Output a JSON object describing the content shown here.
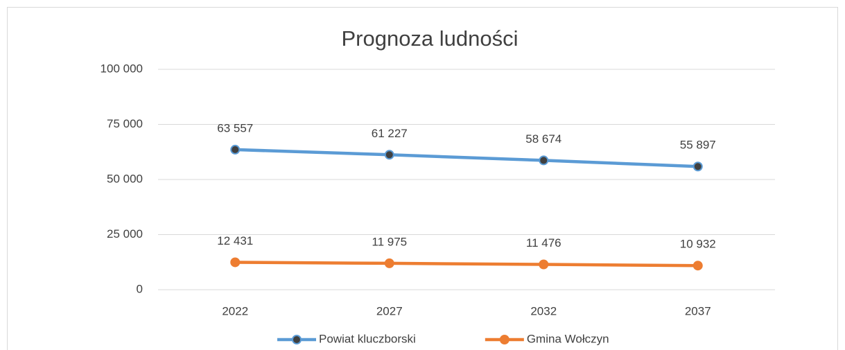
{
  "chart_data": {
    "type": "line",
    "title": "Prognoza ludności",
    "categories": [
      "2022",
      "2027",
      "2032",
      "2037"
    ],
    "series": [
      {
        "name": "Powiat kluczborski",
        "color": "#5b9bd5",
        "marker_color": "#404040",
        "values": [
          63557,
          61227,
          58674,
          55897
        ],
        "value_labels": [
          "63 557",
          "61 227",
          "58 674",
          "55 897"
        ]
      },
      {
        "name": "Gmina Wołczyn",
        "color": "#ed7d31",
        "marker_color": "#ed7d31",
        "values": [
          12431,
          11975,
          11476,
          10932
        ],
        "value_labels": [
          "12 431",
          "11 975",
          "11 476",
          "10 932"
        ]
      }
    ],
    "ylim": [
      0,
      100000
    ],
    "yticks": [
      0,
      {
        "value": 25000,
        "label": "25 000"
      },
      {
        "value": 50000,
        "label": "50 000"
      },
      {
        "value": 75000,
        "label": "75 000"
      },
      {
        "value": 100000,
        "label": "100 000"
      }
    ],
    "grid": true,
    "legend": "bottom"
  }
}
